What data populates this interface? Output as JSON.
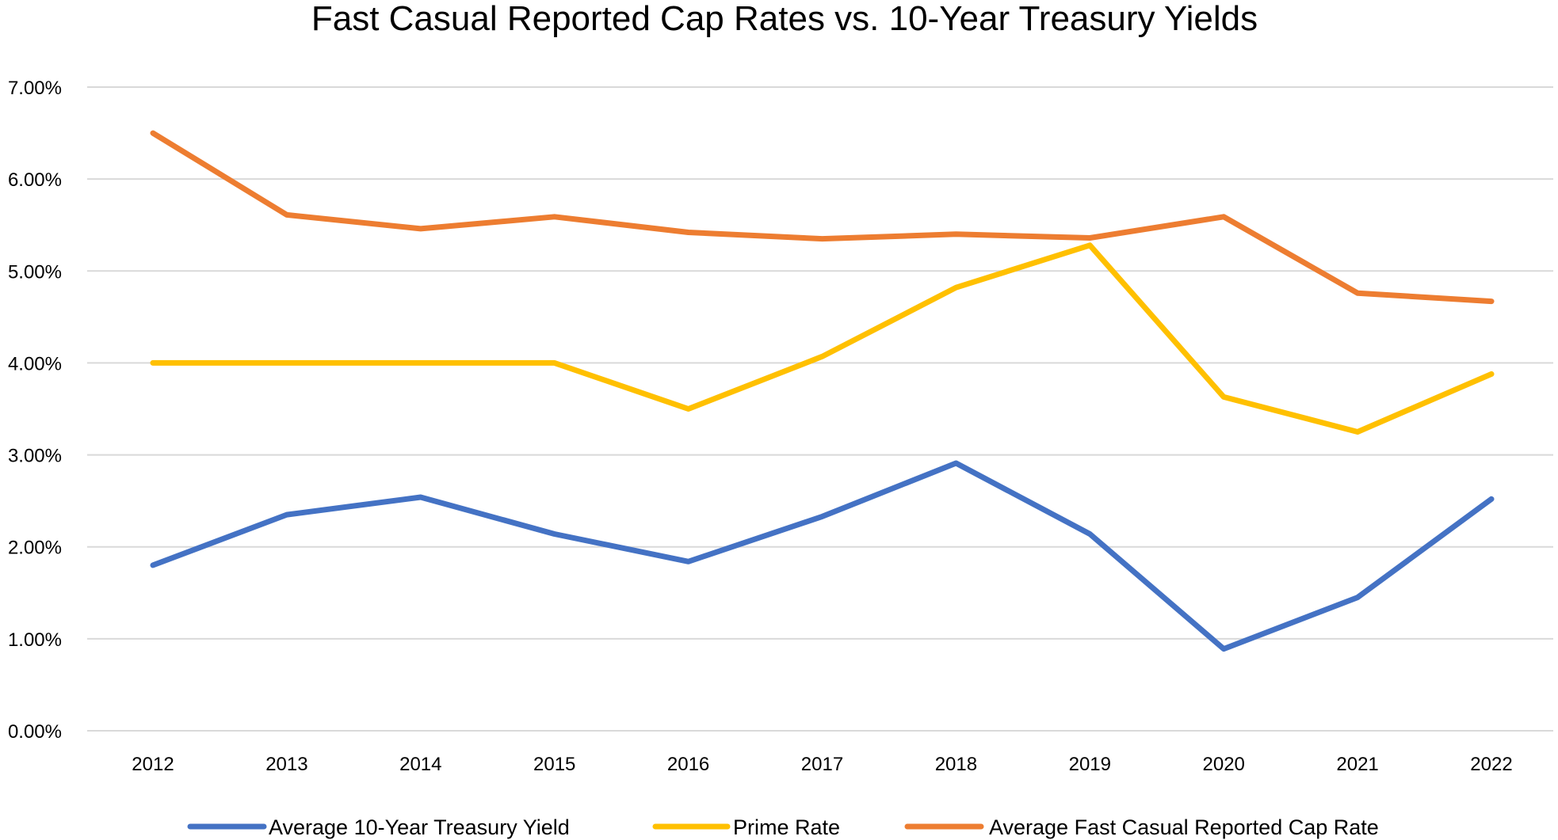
{
  "chart_data": {
    "type": "line",
    "title": "Fast Casual Reported Cap Rates vs. 10-Year Treasury Yields",
    "xlabel": "",
    "ylabel": "",
    "categories": [
      "2012",
      "2013",
      "2014",
      "2015",
      "2016",
      "2017",
      "2018",
      "2019",
      "2020",
      "2021",
      "2022"
    ],
    "ylim": [
      0,
      7
    ],
    "y_ticks": [
      0,
      1,
      2,
      3,
      4,
      5,
      6,
      7
    ],
    "y_tick_labels": [
      "0.00%",
      "1.00%",
      "2.00%",
      "3.00%",
      "4.00%",
      "5.00%",
      "6.00%",
      "7.00%"
    ],
    "grid": true,
    "legend_position": "bottom",
    "series": [
      {
        "name": "Average 10-Year Treasury Yield",
        "color": "#4472c4",
        "values": [
          1.8,
          2.35,
          2.54,
          2.14,
          1.84,
          2.33,
          2.91,
          2.14,
          0.89,
          1.45,
          2.52
        ]
      },
      {
        "name": "Prime Rate",
        "color": "#ffc000",
        "values": [
          4.0,
          4.0,
          4.0,
          4.0,
          3.5,
          4.07,
          4.82,
          5.28,
          3.63,
          3.25,
          3.88
        ]
      },
      {
        "name": "Average Fast Casual Reported Cap Rate",
        "color": "#ed7d31",
        "values": [
          6.5,
          5.61,
          5.46,
          5.59,
          5.42,
          5.35,
          5.4,
          5.36,
          5.59,
          4.76,
          4.67
        ]
      }
    ]
  }
}
